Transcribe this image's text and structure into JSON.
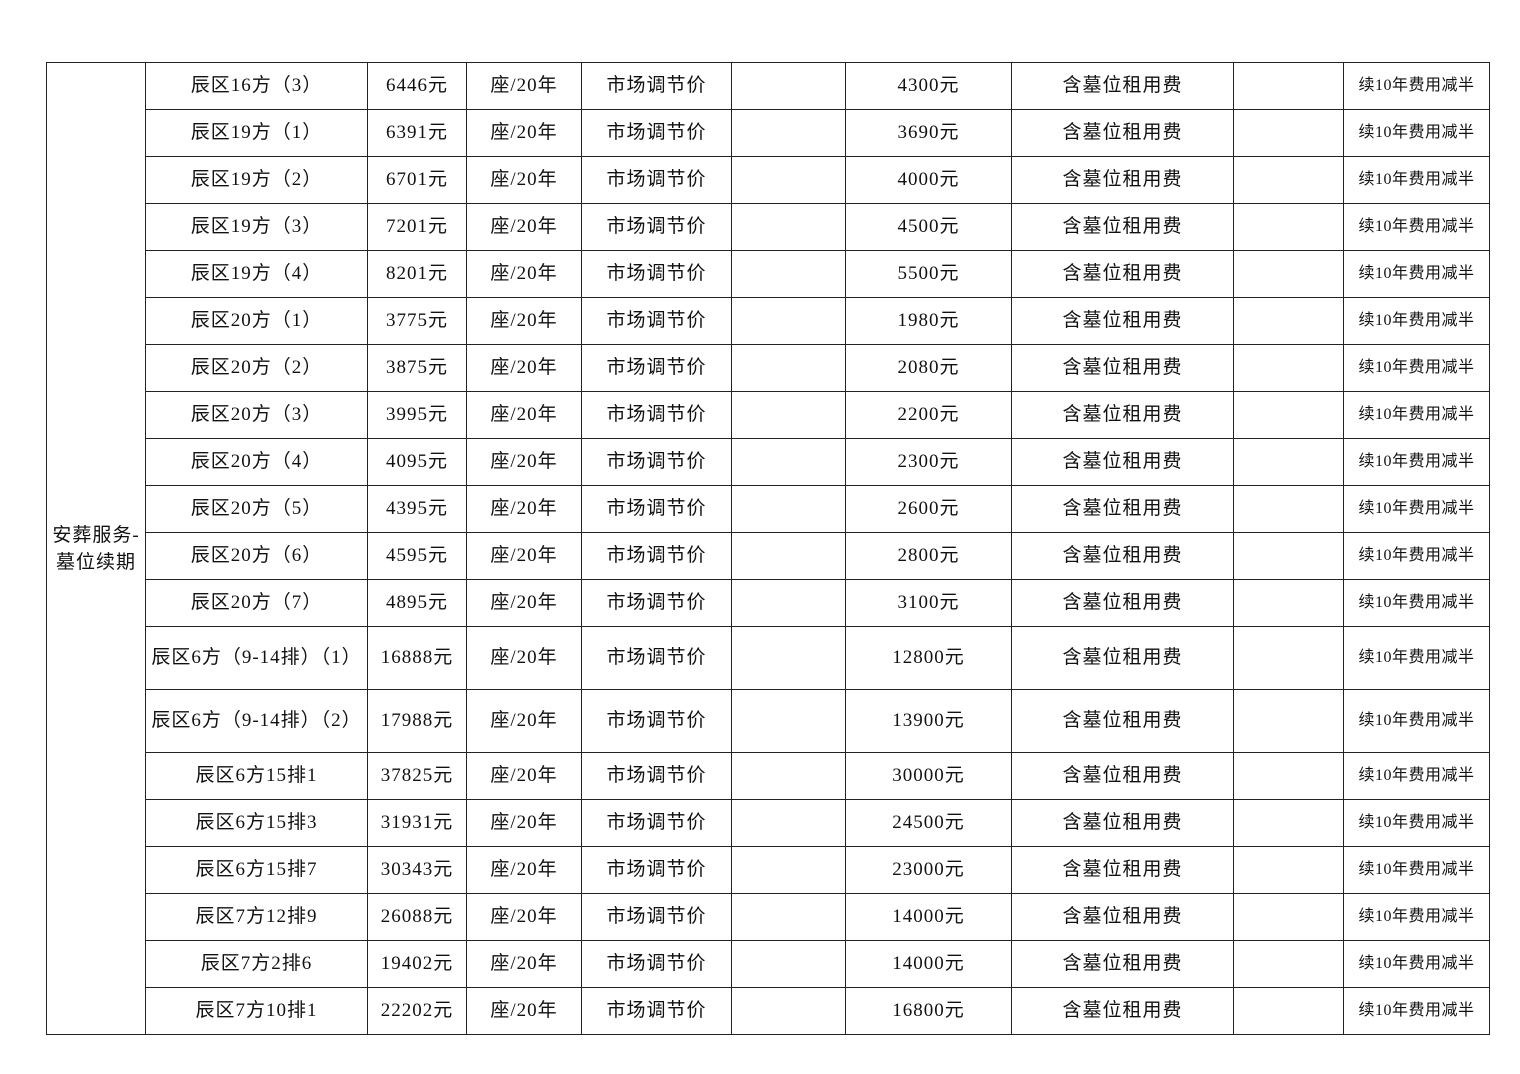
{
  "category": "安葬服务-墓位续期",
  "unit": "座/20年",
  "price_type": "市场调节价",
  "includes": "含墓位租用费",
  "note": "续10年费用减半",
  "rows": [
    {
      "name": "辰区16方（3）",
      "price": "6446元",
      "fee": "4300元"
    },
    {
      "name": "辰区19方（1）",
      "price": "6391元",
      "fee": "3690元"
    },
    {
      "name": "辰区19方（2）",
      "price": "6701元",
      "fee": "4000元"
    },
    {
      "name": "辰区19方（3）",
      "price": "7201元",
      "fee": "4500元"
    },
    {
      "name": "辰区19方（4）",
      "price": "8201元",
      "fee": "5500元"
    },
    {
      "name": "辰区20方（1）",
      "price": "3775元",
      "fee": "1980元"
    },
    {
      "name": "辰区20方（2）",
      "price": "3875元",
      "fee": "2080元"
    },
    {
      "name": "辰区20方（3）",
      "price": "3995元",
      "fee": "2200元"
    },
    {
      "name": "辰区20方（4）",
      "price": "4095元",
      "fee": "2300元"
    },
    {
      "name": "辰区20方（5）",
      "price": "4395元",
      "fee": "2600元"
    },
    {
      "name": "辰区20方（6）",
      "price": "4595元",
      "fee": "2800元"
    },
    {
      "name": "辰区20方（7）",
      "price": "4895元",
      "fee": "3100元"
    },
    {
      "name": "辰区6方（9-14排）（1）",
      "price": "16888元",
      "fee": "12800元"
    },
    {
      "name": "辰区6方（9-14排）（2）",
      "price": "17988元",
      "fee": "13900元"
    },
    {
      "name": "辰区6方15排1",
      "price": "37825元",
      "fee": "30000元"
    },
    {
      "name": "辰区6方15排3",
      "price": "31931元",
      "fee": "24500元"
    },
    {
      "name": "辰区6方15排7",
      "price": "30343元",
      "fee": "23000元"
    },
    {
      "name": "辰区7方12排9",
      "price": "26088元",
      "fee": "14000元"
    },
    {
      "name": "辰区7方2排6",
      "price": "19402元",
      "fee": "14000元"
    },
    {
      "name": "辰区7方10排1",
      "price": "22202元",
      "fee": "16800元"
    }
  ]
}
